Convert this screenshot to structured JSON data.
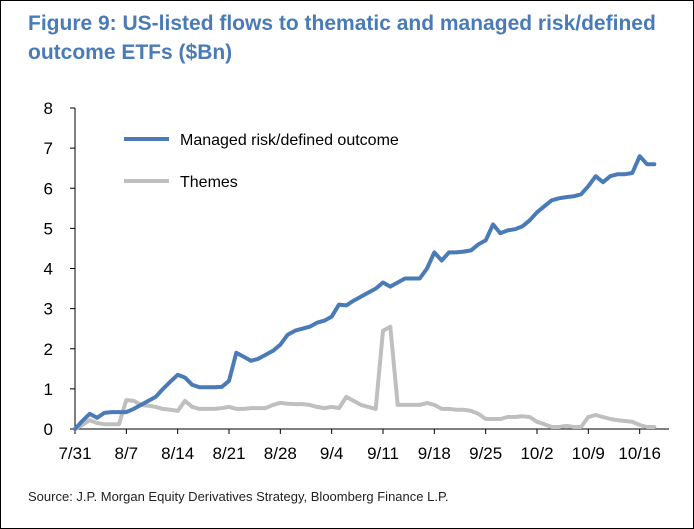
{
  "title": "Figure 9: US-listed flows to thematic and managed risk/defined outcome ETFs ($Bn)",
  "source": "Source: J.P. Morgan Equity Derivatives Strategy, Bloomberg Finance L.P.",
  "chart_data": {
    "type": "line",
    "title": "Figure 9: US-listed flows to thematic and managed risk/defined outcome ETFs ($Bn)",
    "xlabel": "",
    "ylabel": "",
    "ylim": [
      0,
      8
    ],
    "xlim": [
      0,
      81
    ],
    "yticks": [
      0,
      1,
      2,
      3,
      4,
      5,
      6,
      7,
      8
    ],
    "xticks": [
      {
        "pos": 0,
        "label": "7/31"
      },
      {
        "pos": 7,
        "label": "8/7"
      },
      {
        "pos": 14,
        "label": "8/14"
      },
      {
        "pos": 21,
        "label": "8/21"
      },
      {
        "pos": 28,
        "label": "8/28"
      },
      {
        "pos": 35,
        "label": "9/4"
      },
      {
        "pos": 42,
        "label": "9/11"
      },
      {
        "pos": 49,
        "label": "9/18"
      },
      {
        "pos": 56,
        "label": "9/25"
      },
      {
        "pos": 63,
        "label": "10/2"
      },
      {
        "pos": 70,
        "label": "10/9"
      },
      {
        "pos": 77,
        "label": "10/16"
      }
    ],
    "legend_position": "top-left",
    "series": [
      {
        "name": "Managed risk/defined outcome",
        "color": "#4a7bb7",
        "x": [
          0,
          1,
          2,
          3,
          4,
          5,
          6,
          7,
          8,
          9,
          10,
          11,
          12,
          13,
          14,
          15,
          16,
          17,
          18,
          19,
          20,
          21,
          22,
          23,
          24,
          25,
          26,
          27,
          28,
          29,
          30,
          31,
          32,
          33,
          34,
          35,
          36,
          37,
          38,
          39,
          40,
          41,
          42,
          43,
          44,
          45,
          46,
          47,
          48,
          49,
          50,
          51,
          52,
          53,
          54,
          55,
          56,
          57,
          58,
          59,
          60,
          61,
          62,
          63,
          64,
          65,
          66,
          67,
          68,
          69,
          70,
          71,
          72,
          73,
          74,
          75,
          76,
          77,
          78,
          79
        ],
        "values": [
          0.0,
          0.2,
          0.38,
          0.28,
          0.4,
          0.42,
          0.42,
          0.42,
          0.5,
          0.6,
          0.7,
          0.8,
          1.0,
          1.18,
          1.35,
          1.28,
          1.1,
          1.04,
          1.04,
          1.04,
          1.05,
          1.2,
          1.9,
          1.8,
          1.7,
          1.75,
          1.85,
          1.95,
          2.1,
          2.35,
          2.45,
          2.5,
          2.55,
          2.65,
          2.7,
          2.8,
          3.1,
          3.08,
          3.2,
          3.3,
          3.4,
          3.5,
          3.65,
          3.55,
          3.65,
          3.75,
          3.75,
          3.75,
          4.0,
          4.4,
          4.2,
          4.4,
          4.4,
          4.42,
          4.45,
          4.6,
          4.7,
          5.1,
          4.88,
          4.95,
          4.98,
          5.05,
          5.2,
          5.4,
          5.55,
          5.7,
          5.75,
          5.78,
          5.8,
          5.85,
          6.05,
          6.3,
          6.15,
          6.3,
          6.35,
          6.35,
          6.38,
          6.8,
          6.6,
          6.6
        ]
      },
      {
        "name": "Themes",
        "color": "#bfbfbf",
        "x": [
          0,
          1,
          2,
          3,
          4,
          5,
          6,
          7,
          8,
          9,
          10,
          11,
          12,
          13,
          14,
          15,
          16,
          17,
          18,
          19,
          20,
          21,
          22,
          23,
          24,
          25,
          26,
          27,
          28,
          29,
          30,
          31,
          32,
          33,
          34,
          35,
          36,
          37,
          38,
          39,
          40,
          41,
          42,
          43,
          44,
          45,
          46,
          47,
          48,
          49,
          50,
          51,
          52,
          53,
          54,
          55,
          56,
          57,
          58,
          59,
          60,
          61,
          62,
          63,
          64,
          65,
          66,
          67,
          68,
          69,
          70,
          71,
          72,
          73,
          74,
          75,
          76,
          77,
          78,
          79
        ],
        "values": [
          0.0,
          0.1,
          0.22,
          0.15,
          0.12,
          0.12,
          0.12,
          0.72,
          0.7,
          0.6,
          0.58,
          0.55,
          0.5,
          0.48,
          0.45,
          0.7,
          0.55,
          0.5,
          0.5,
          0.5,
          0.52,
          0.55,
          0.5,
          0.5,
          0.52,
          0.52,
          0.52,
          0.6,
          0.65,
          0.63,
          0.62,
          0.62,
          0.6,
          0.55,
          0.52,
          0.55,
          0.52,
          0.8,
          0.7,
          0.6,
          0.55,
          0.5,
          2.45,
          2.55,
          0.6,
          0.6,
          0.6,
          0.6,
          0.65,
          0.6,
          0.5,
          0.5,
          0.48,
          0.48,
          0.45,
          0.38,
          0.25,
          0.25,
          0.25,
          0.3,
          0.3,
          0.32,
          0.3,
          0.18,
          0.12,
          0.05,
          0.05,
          0.08,
          0.05,
          0.05,
          0.3,
          0.35,
          0.3,
          0.25,
          0.22,
          0.2,
          0.18,
          0.1,
          0.05,
          0.05
        ]
      }
    ]
  }
}
